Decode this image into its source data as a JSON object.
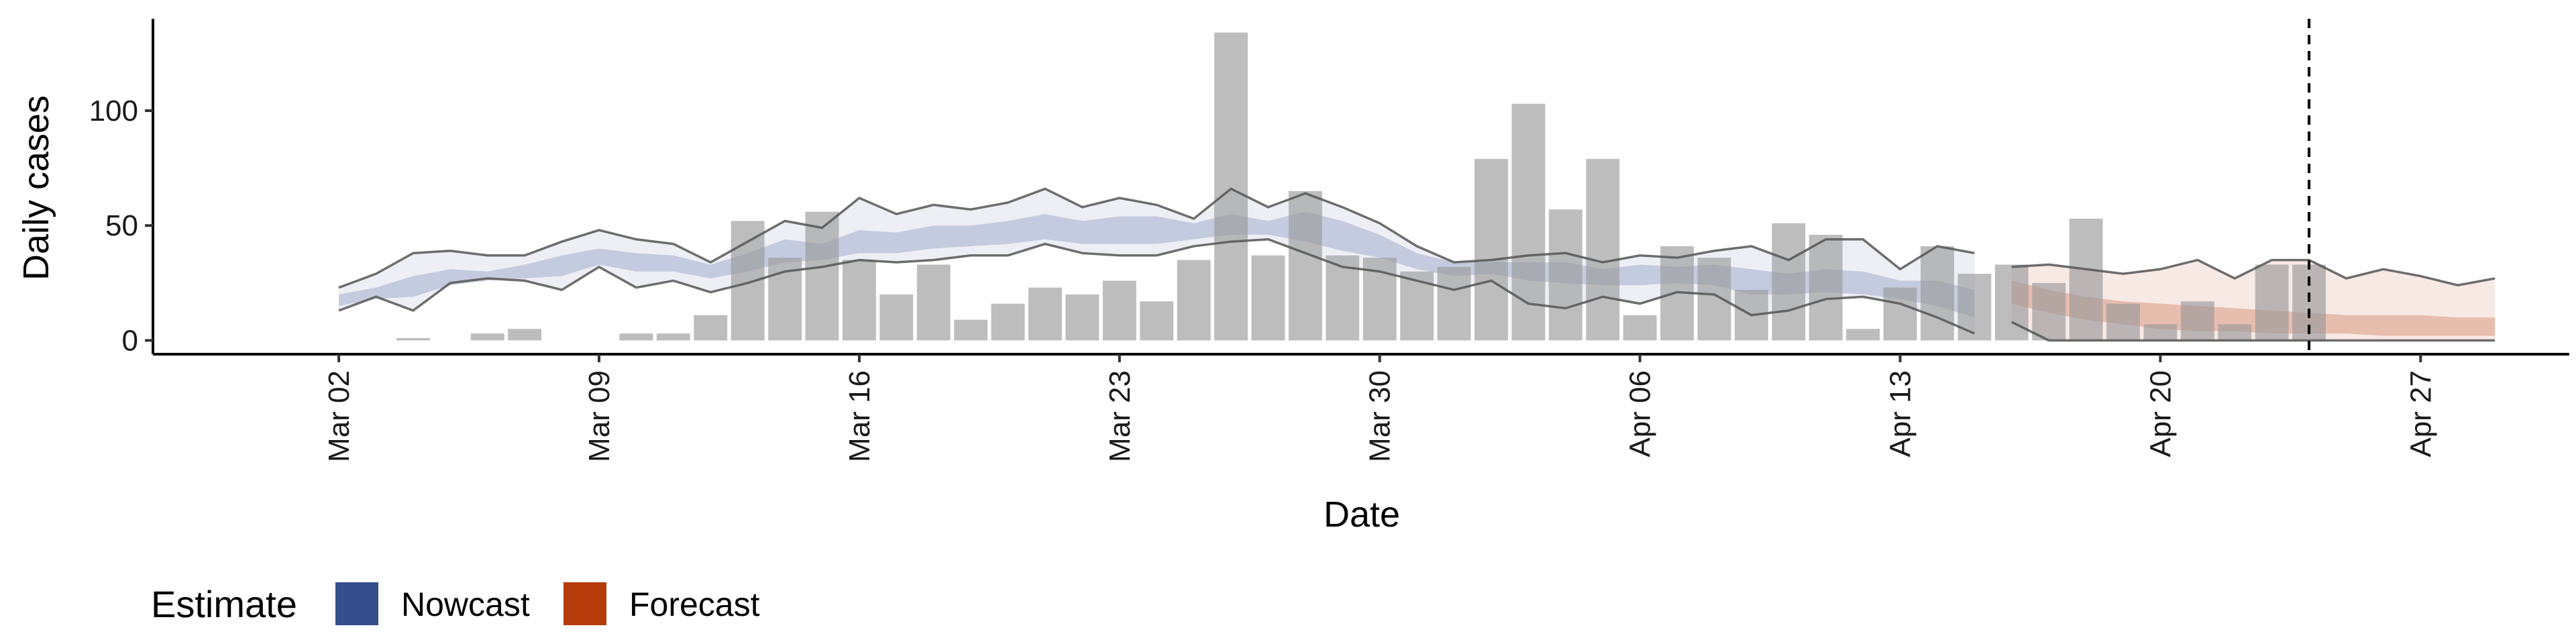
{
  "chart_data": {
    "type": "bar",
    "title": "",
    "xlabel": "Date",
    "ylabel": "Daily cases",
    "x_start": "2020-03-02",
    "x_range": [
      "2020-02-26",
      "2020-05-01"
    ],
    "ylim": [
      -6,
      140
    ],
    "y_ticks": [
      0,
      50,
      100
    ],
    "x_ticks": [
      {
        "date": "2020-03-02",
        "label": "Mar 02"
      },
      {
        "date": "2020-03-09",
        "label": "Mar 09"
      },
      {
        "date": "2020-03-16",
        "label": "Mar 16"
      },
      {
        "date": "2020-03-23",
        "label": "Mar 23"
      },
      {
        "date": "2020-03-30",
        "label": "Mar 30"
      },
      {
        "date": "2020-04-06",
        "label": "Apr 06"
      },
      {
        "date": "2020-04-13",
        "label": "Apr 13"
      },
      {
        "date": "2020-04-20",
        "label": "Apr 20"
      },
      {
        "date": "2020-04-27",
        "label": "Apr 27"
      }
    ],
    "vline_date": "2020-04-24",
    "bars": {
      "dates": [
        "2020-03-04",
        "2020-03-06",
        "2020-03-07",
        "2020-03-10",
        "2020-03-11",
        "2020-03-12",
        "2020-03-13",
        "2020-03-14",
        "2020-03-15",
        "2020-03-16",
        "2020-03-17",
        "2020-03-18",
        "2020-03-19",
        "2020-03-20",
        "2020-03-21",
        "2020-03-22",
        "2020-03-23",
        "2020-03-24",
        "2020-03-25",
        "2020-03-26",
        "2020-03-27",
        "2020-03-28",
        "2020-03-29",
        "2020-03-30",
        "2020-03-31",
        "2020-04-01",
        "2020-04-02",
        "2020-04-03",
        "2020-04-04",
        "2020-04-05",
        "2020-04-06",
        "2020-04-07",
        "2020-04-08",
        "2020-04-09",
        "2020-04-10",
        "2020-04-11",
        "2020-04-12",
        "2020-04-13",
        "2020-04-14",
        "2020-04-15",
        "2020-04-16",
        "2020-04-17",
        "2020-04-18",
        "2020-04-19",
        "2020-04-20",
        "2020-04-21",
        "2020-04-22",
        "2020-04-23",
        "2020-04-24"
      ],
      "values": [
        1,
        3,
        5,
        3,
        3,
        11,
        52,
        36,
        56,
        35,
        20,
        33,
        9,
        16,
        23,
        20,
        26,
        17,
        35,
        134,
        37,
        65,
        37,
        36,
        30,
        32,
        79,
        103,
        57,
        79,
        11,
        41,
        36,
        22,
        51,
        46,
        5,
        23,
        41,
        29,
        33,
        25,
        53,
        16,
        7,
        17,
        7,
        33,
        33
      ]
    },
    "series": [
      {
        "name": "Nowcast",
        "color": "#354e8c",
        "dates_from": "2020-03-02",
        "upper_outer": [
          23,
          29,
          38,
          39,
          37,
          37,
          43,
          48,
          44,
          42,
          34,
          43,
          52,
          49,
          62,
          55,
          59,
          57,
          60,
          66,
          58,
          62,
          59,
          53,
          66,
          58,
          64,
          58,
          51,
          41,
          34,
          35,
          37,
          38,
          34,
          37,
          36,
          39,
          41,
          35,
          44,
          44,
          31,
          41,
          38
        ],
        "lower_outer": [
          13,
          19,
          13,
          25,
          27,
          26,
          22,
          32,
          23,
          26,
          21,
          25,
          30,
          32,
          35,
          34,
          35,
          37,
          37,
          42,
          38,
          37,
          37,
          41,
          43,
          44,
          38,
          32,
          30,
          26,
          22,
          26,
          16,
          14,
          19,
          16,
          21,
          20,
          11,
          13,
          18,
          19,
          16,
          10,
          3
        ],
        "upper_inner": [
          20,
          23,
          28,
          31,
          30,
          33,
          37,
          40,
          38,
          37,
          33,
          38,
          44,
          42,
          48,
          47,
          50,
          50,
          52,
          55,
          52,
          54,
          54,
          51,
          55,
          52,
          56,
          52,
          46,
          38,
          34,
          34,
          34,
          34,
          31,
          33,
          32,
          33,
          31,
          29,
          31,
          30,
          26,
          26,
          22
        ],
        "lower_inner": [
          15,
          18,
          19,
          24,
          26,
          27,
          28,
          33,
          30,
          30,
          27,
          30,
          34,
          35,
          38,
          38,
          40,
          41,
          42,
          44,
          42,
          42,
          42,
          44,
          46,
          46,
          43,
          39,
          36,
          31,
          28,
          29,
          26,
          25,
          24,
          24,
          25,
          24,
          20,
          20,
          21,
          20,
          18,
          15,
          10
        ]
      },
      {
        "name": "Forecast",
        "color": "#b63b0a",
        "dates_from": "2020-04-16",
        "upper_outer": [
          32,
          33,
          31,
          29,
          31,
          35,
          27,
          35,
          35,
          27,
          31,
          28,
          24,
          27
        ],
        "lower_outer": [
          8,
          0,
          0,
          0,
          0,
          0,
          0,
          0,
          0,
          0,
          0,
          0,
          0,
          0
        ],
        "upper_inner": [
          26,
          22,
          19,
          17,
          16,
          15,
          14,
          13,
          12,
          11,
          11,
          11,
          10,
          10
        ],
        "lower_inner": [
          16,
          12,
          9,
          7,
          5,
          4,
          4,
          3,
          3,
          3,
          2,
          2,
          2,
          2
        ]
      }
    ],
    "legend": {
      "title": "Estimate",
      "position": "bottom-left",
      "entries": [
        {
          "label": "Nowcast",
          "color": "#354e8c"
        },
        {
          "label": "Forecast",
          "color": "#b63b0a"
        }
      ]
    },
    "grid": false
  }
}
